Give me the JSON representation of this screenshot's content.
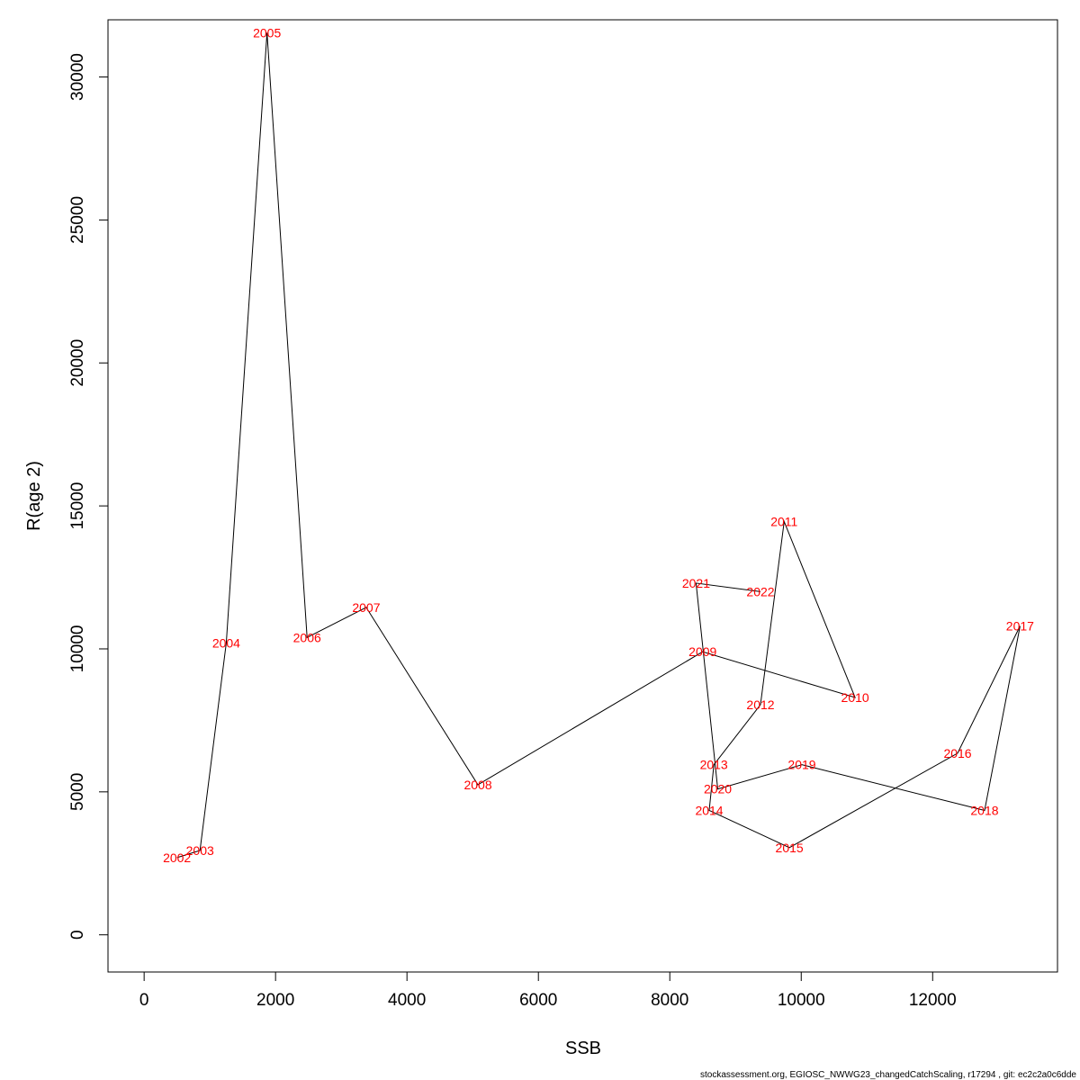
{
  "chart_data": {
    "type": "line",
    "xlabel": "SSB",
    "ylabel": "R(age 2)",
    "xlim": [
      -550,
      13900
    ],
    "ylim": [
      -1300,
      32000
    ],
    "x_ticks": [
      0,
      2000,
      4000,
      6000,
      8000,
      10000,
      12000
    ],
    "y_ticks": [
      0,
      5000,
      10000,
      15000,
      20000,
      25000,
      30000
    ],
    "grid": false,
    "point_label_color": "#ff0000",
    "line_color": "#000000",
    "points": [
      {
        "label": "2002",
        "x": 500,
        "y": 2700
      },
      {
        "label": "2003",
        "x": 850,
        "y": 2950
      },
      {
        "label": "2004",
        "x": 1250,
        "y": 10200
      },
      {
        "label": "2005",
        "x": 1870,
        "y": 31550
      },
      {
        "label": "2006",
        "x": 2480,
        "y": 10400
      },
      {
        "label": "2007",
        "x": 3380,
        "y": 11450
      },
      {
        "label": "2008",
        "x": 5080,
        "y": 5250
      },
      {
        "label": "2009",
        "x": 8500,
        "y": 9900
      },
      {
        "label": "2010",
        "x": 10820,
        "y": 8300
      },
      {
        "label": "2011",
        "x": 9740,
        "y": 14450
      },
      {
        "label": "2012",
        "x": 9380,
        "y": 8050
      },
      {
        "label": "2013",
        "x": 8670,
        "y": 5950
      },
      {
        "label": "2014",
        "x": 8600,
        "y": 4350
      },
      {
        "label": "2015",
        "x": 9820,
        "y": 3050
      },
      {
        "label": "2016",
        "x": 12380,
        "y": 6350
      },
      {
        "label": "2017",
        "x": 13330,
        "y": 10800
      },
      {
        "label": "2018",
        "x": 12790,
        "y": 4350
      },
      {
        "label": "2019",
        "x": 10010,
        "y": 5950
      },
      {
        "label": "2020",
        "x": 8730,
        "y": 5100
      },
      {
        "label": "2021",
        "x": 8400,
        "y": 12300
      },
      {
        "label": "2022",
        "x": 9380,
        "y": 12000
      }
    ]
  },
  "footer_text": "stockassessment.org, EGIOSC_NWWG23_changedCatchScaling, r17294 , git: ec2c2a0c6dde"
}
